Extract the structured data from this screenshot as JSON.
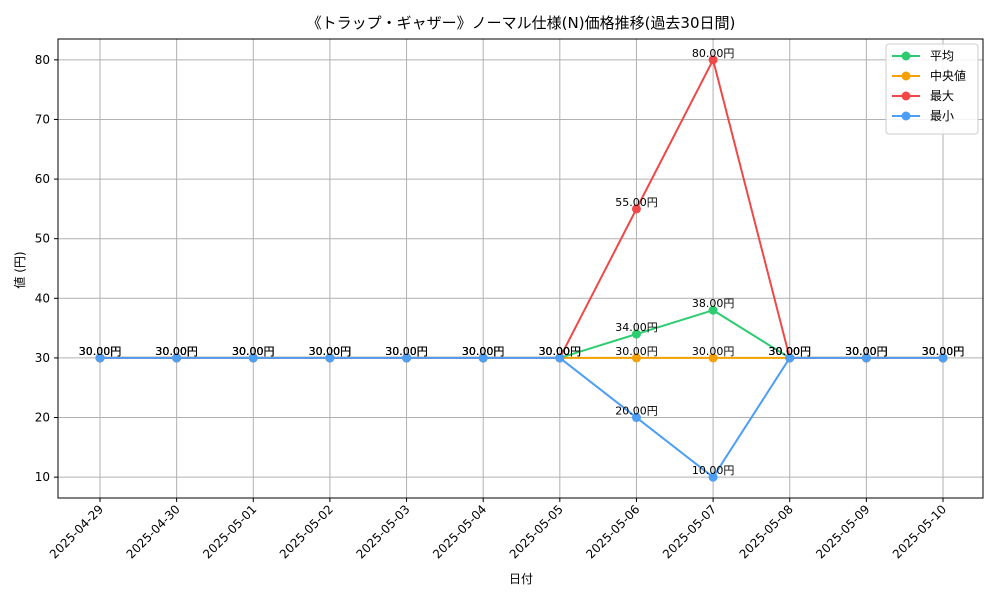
{
  "chart_data": {
    "type": "line",
    "title": "《トラップ・ギャザー》ノーマル仕様(N)価格推移(過去30日間)",
    "xlabel": "日付",
    "ylabel": "値 (円)",
    "categories": [
      "2025-04-29",
      "2025-04-30",
      "2025-05-01",
      "2025-05-02",
      "2025-05-03",
      "2025-05-04",
      "2025-05-05",
      "2025-05-06",
      "2025-05-07",
      "2025-05-08",
      "2025-05-09",
      "2025-05-10"
    ],
    "ylim": [
      6.5,
      83.5
    ],
    "yticks": [
      10,
      20,
      30,
      40,
      50,
      60,
      70,
      80
    ],
    "grid": true,
    "legend_position": "top-right",
    "value_suffix": "円",
    "series": [
      {
        "name": "平均",
        "color": "#2ecc71",
        "values": [
          30,
          30,
          30,
          30,
          30,
          30,
          30,
          34,
          38,
          30,
          30,
          30
        ]
      },
      {
        "name": "中央値",
        "color": "#f5a000",
        "values": [
          30,
          30,
          30,
          30,
          30,
          30,
          30,
          30,
          30,
          30,
          30,
          30
        ]
      },
      {
        "name": "最大",
        "color": "#f04848",
        "values": [
          30,
          30,
          30,
          30,
          30,
          30,
          30,
          55,
          80,
          30,
          30,
          30
        ]
      },
      {
        "name": "最小",
        "color": "#4d9ef5",
        "values": [
          30,
          30,
          30,
          30,
          30,
          30,
          30,
          20,
          10,
          30,
          30,
          30
        ]
      }
    ]
  }
}
